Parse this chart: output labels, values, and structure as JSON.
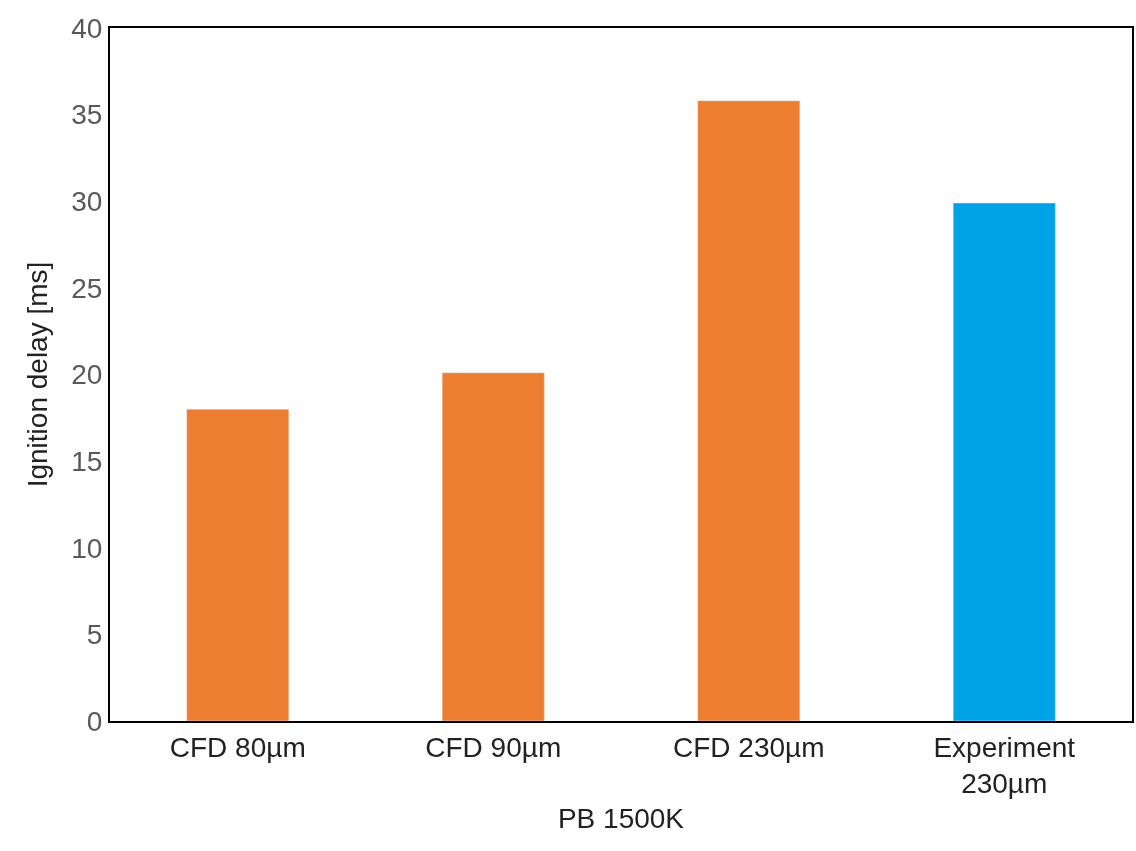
{
  "chart_data": {
    "type": "bar",
    "xlabel": "PB 1500K",
    "ylabel": "Ignition delay [ms]",
    "categories": [
      "CFD 80µm",
      "CFD 90µm",
      "CFD 230µm",
      "Experiment\n230µm"
    ],
    "values": [
      18,
      20.1,
      35.8,
      29.9
    ],
    "colors": [
      "#ed7d31",
      "#ed7d31",
      "#ed7d31",
      "#00a2e8"
    ],
    "ylim": [
      0,
      40
    ],
    "yticks": [
      0,
      5,
      10,
      15,
      20,
      25,
      30,
      35,
      40
    ]
  }
}
